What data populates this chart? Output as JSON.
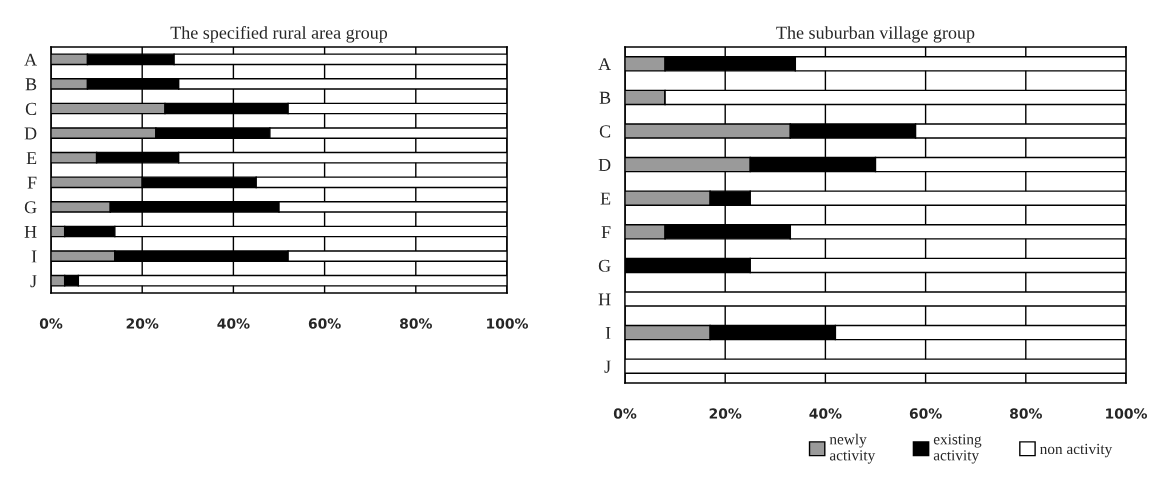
{
  "chart_data": [
    {
      "type": "bar",
      "orientation": "horizontal",
      "stacked": true,
      "title": "The specified rural area group",
      "categories": [
        "A",
        "B",
        "C",
        "D",
        "E",
        "F",
        "G",
        "H",
        "I",
        "J"
      ],
      "series": [
        {
          "color": "#9a9a9a",
          "values": [
            8,
            8,
            25,
            23,
            10,
            20,
            13,
            3,
            14,
            3
          ]
        },
        {
          "color": "#000000",
          "values": [
            19,
            20,
            27,
            25,
            18,
            25,
            37,
            11,
            38,
            3
          ]
        },
        {
          "color": "#ffffff",
          "values": [
            73,
            72,
            48,
            52,
            72,
            55,
            50,
            86,
            48,
            94
          ]
        }
      ],
      "xlim": [
        0,
        100
      ],
      "xticks": [
        {
          "value": 0,
          "label": "0%"
        },
        {
          "value": 20,
          "label": "20%"
        },
        {
          "value": 40,
          "label": "40%"
        },
        {
          "value": 60,
          "label": "60%"
        },
        {
          "value": 80,
          "label": "80%"
        },
        {
          "value": 100,
          "label": "100%"
        }
      ],
      "grid": "x",
      "legend": false
    },
    {
      "type": "bar",
      "orientation": "horizontal",
      "stacked": true,
      "title": "The suburban village group",
      "categories": [
        "A",
        "B",
        "C",
        "D",
        "E",
        "F",
        "G",
        "H",
        "I",
        "J"
      ],
      "series": [
        {
          "name": "newly\nactivity",
          "color": "#9a9a9a",
          "values": [
            8,
            8,
            33,
            25,
            17,
            8,
            0,
            0,
            17,
            0
          ]
        },
        {
          "name": "existing\nactivity",
          "color": "#000000",
          "values": [
            26,
            0,
            25,
            25,
            8,
            25,
            25,
            0,
            25,
            0
          ]
        },
        {
          "name": "non activity",
          "color": "#ffffff",
          "values": [
            66,
            92,
            42,
            50,
            75,
            67,
            75,
            100,
            58,
            100
          ]
        }
      ],
      "xlim": [
        0,
        100
      ],
      "xticks": [
        {
          "value": 0,
          "label": "0%"
        },
        {
          "value": 20,
          "label": "20%"
        },
        {
          "value": 40,
          "label": "40%"
        },
        {
          "value": 60,
          "label": "60%"
        },
        {
          "value": 80,
          "label": "80%"
        },
        {
          "value": 100,
          "label": "100%"
        }
      ],
      "grid": "x",
      "legend": "bottom"
    }
  ]
}
